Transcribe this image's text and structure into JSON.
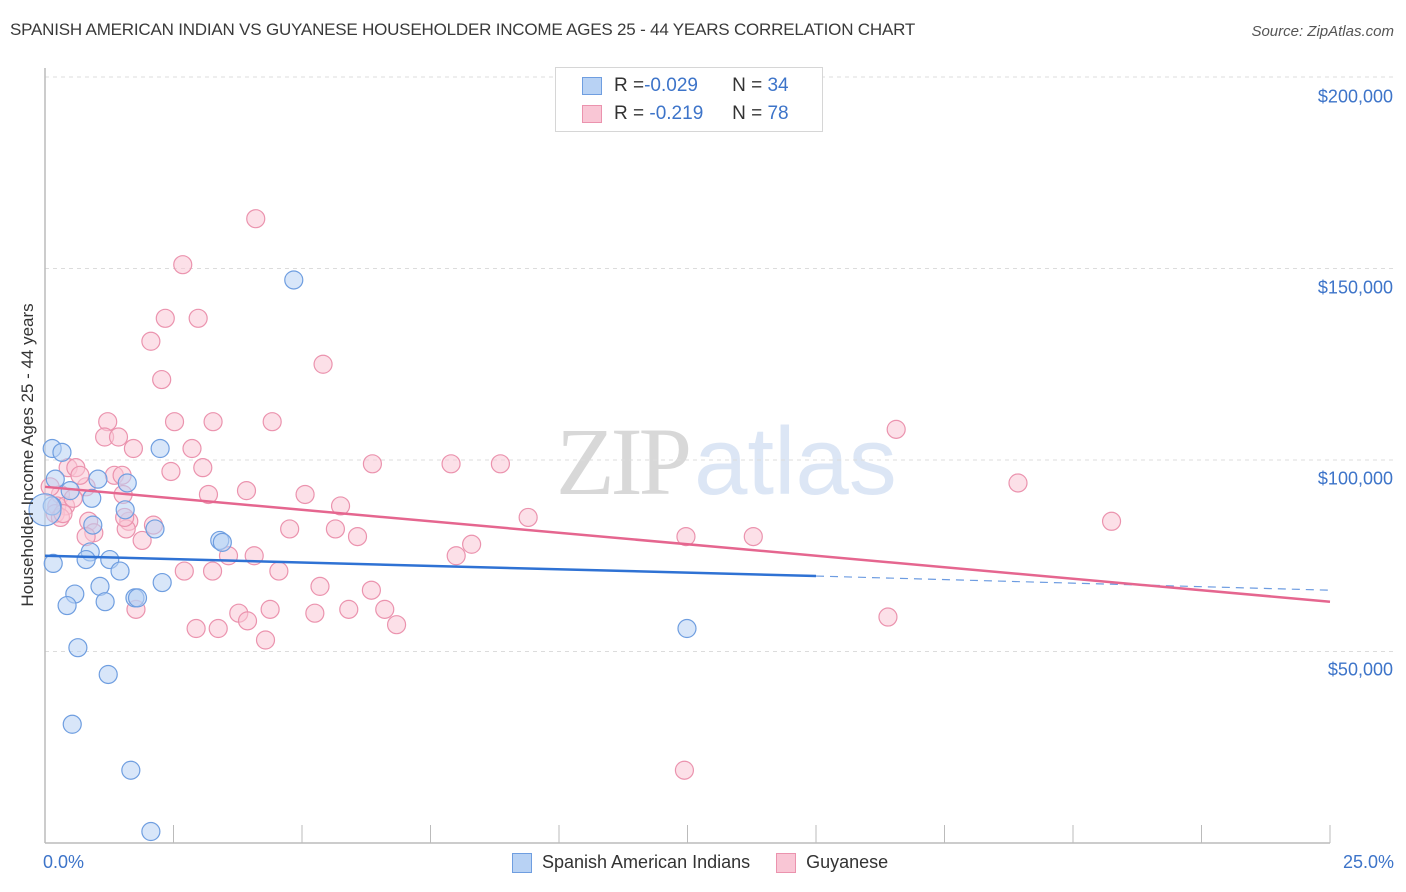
{
  "header": {
    "title": "SPANISH AMERICAN INDIAN VS GUYANESE HOUSEHOLDER INCOME AGES 25 - 44 YEARS CORRELATION CHART",
    "source": "Source: ZipAtlas.com"
  },
  "watermark": {
    "zip": "ZIP",
    "atlas": "atlas"
  },
  "axes": {
    "ylabel": "Householder Income Ages 25 - 44 years",
    "y_ticks": [
      "$200,000",
      "$150,000",
      "$100,000",
      "$50,000"
    ],
    "x_min_label": "0.0%",
    "x_max_label": "25.0%"
  },
  "legend": {
    "rows": [
      {
        "r_label": "R = ",
        "r_value": "-0.029",
        "n_label": "N = ",
        "n_value": "34"
      },
      {
        "r_label": "R = ",
        "r_value": " -0.219",
        "n_label": "N = ",
        "n_value": "78"
      }
    ],
    "bottom": [
      "Spanish American Indians",
      "Guyanese"
    ]
  },
  "colors": {
    "blue_fill": "#b8d2f4",
    "blue_stroke": "#6f9ee0",
    "blue_line": "#2f72d4",
    "pink_fill": "#f9c6d5",
    "pink_stroke": "#eb93ae",
    "pink_line": "#e5668f",
    "accent_text": "#3d74c9"
  },
  "chart_data": {
    "type": "scatter",
    "title": "SPANISH AMERICAN INDIAN VS GUYANESE HOUSEHOLDER INCOME AGES 25 - 44 YEARS CORRELATION CHART",
    "xlabel": "",
    "ylabel": "Householder Income Ages 25 - 44 years",
    "xlim": [
      0,
      25
    ],
    "ylim": [
      0,
      210000
    ],
    "x_unit": "%",
    "y_ticks": [
      50000,
      100000,
      150000,
      200000
    ],
    "grid": true,
    "legend_position": "top-center and bottom",
    "series": [
      {
        "name": "Spanish American Indians",
        "R": -0.029,
        "N": 34,
        "trend": {
          "x0": 0,
          "y0": 75000,
          "x1": 15,
          "y1": 69700,
          "dashed_to_x": 25,
          "dashed_y1": 66000
        },
        "points": [
          [
            0.14,
            103000
          ],
          [
            0.33,
            102000
          ],
          [
            0.2,
            95000
          ],
          [
            0.14,
            88000
          ],
          [
            0.0,
            87000
          ],
          [
            0.49,
            92000
          ],
          [
            0.91,
            90000
          ],
          [
            1.03,
            95000
          ],
          [
            1.6,
            94000
          ],
          [
            1.56,
            87000
          ],
          [
            2.14,
            82000
          ],
          [
            0.93,
            83000
          ],
          [
            0.88,
            76000
          ],
          [
            0.8,
            74000
          ],
          [
            1.26,
            74000
          ],
          [
            0.16,
            73000
          ],
          [
            1.46,
            71000
          ],
          [
            1.07,
            67000
          ],
          [
            0.58,
            65000
          ],
          [
            1.17,
            63000
          ],
          [
            0.43,
            62000
          ],
          [
            1.75,
            64000
          ],
          [
            2.28,
            68000
          ],
          [
            1.8,
            64000
          ],
          [
            0.64,
            51000
          ],
          [
            1.23,
            44000
          ],
          [
            0.53,
            31000
          ],
          [
            1.67,
            19000
          ],
          [
            2.06,
            3000
          ],
          [
            4.84,
            147000
          ],
          [
            2.24,
            103000
          ],
          [
            3.4,
            79000
          ],
          [
            3.45,
            78500
          ],
          [
            12.49,
            56000
          ]
        ]
      },
      {
        "name": "Guyanese",
        "R": -0.219,
        "N": 78,
        "trend": {
          "x0": 0,
          "y0": 93000,
          "x1": 25,
          "y1": 63000
        },
        "points": [
          [
            4.1,
            163000
          ],
          [
            2.68,
            151000
          ],
          [
            2.34,
            137000
          ],
          [
            2.98,
            137000
          ],
          [
            2.06,
            131000
          ],
          [
            2.27,
            121000
          ],
          [
            5.41,
            125000
          ],
          [
            1.22,
            110000
          ],
          [
            1.16,
            106000
          ],
          [
            1.43,
            106000
          ],
          [
            2.52,
            110000
          ],
          [
            3.27,
            110000
          ],
          [
            4.42,
            110000
          ],
          [
            2.86,
            103000
          ],
          [
            1.72,
            103000
          ],
          [
            0.45,
            98000
          ],
          [
            0.6,
            98000
          ],
          [
            2.45,
            97000
          ],
          [
            3.07,
            98000
          ],
          [
            6.37,
            99000
          ],
          [
            7.9,
            99000
          ],
          [
            8.86,
            99000
          ],
          [
            1.35,
            96000
          ],
          [
            1.5,
            96000
          ],
          [
            0.8,
            93000
          ],
          [
            0.3,
            91000
          ],
          [
            1.52,
            91000
          ],
          [
            3.18,
            91000
          ],
          [
            3.92,
            92000
          ],
          [
            5.06,
            91000
          ],
          [
            0.23,
            88000
          ],
          [
            0.4,
            88000
          ],
          [
            0.2,
            86000
          ],
          [
            0.3,
            85000
          ],
          [
            5.75,
            88000
          ],
          [
            9.4,
            85000
          ],
          [
            0.85,
            84000
          ],
          [
            1.63,
            84000
          ],
          [
            2.11,
            83000
          ],
          [
            0.95,
            81000
          ],
          [
            1.58,
            82000
          ],
          [
            4.76,
            82000
          ],
          [
            5.65,
            82000
          ],
          [
            6.08,
            80000
          ],
          [
            0.8,
            80000
          ],
          [
            1.89,
            79000
          ],
          [
            12.47,
            80000
          ],
          [
            13.78,
            80000
          ],
          [
            8.3,
            78000
          ],
          [
            8.0,
            75000
          ],
          [
            3.57,
            75000
          ],
          [
            4.07,
            75000
          ],
          [
            20.75,
            84000
          ],
          [
            18.93,
            94000
          ],
          [
            16.56,
            108000
          ],
          [
            2.71,
            71000
          ],
          [
            3.26,
            71000
          ],
          [
            4.55,
            71000
          ],
          [
            5.35,
            67000
          ],
          [
            6.35,
            66000
          ],
          [
            1.77,
            61000
          ],
          [
            3.77,
            60000
          ],
          [
            4.38,
            61000
          ],
          [
            5.25,
            60000
          ],
          [
            5.91,
            61000
          ],
          [
            6.61,
            61000
          ],
          [
            3.94,
            58000
          ],
          [
            6.84,
            57000
          ],
          [
            2.94,
            56000
          ],
          [
            3.37,
            56000
          ],
          [
            4.29,
            53000
          ],
          [
            16.4,
            59000
          ],
          [
            12.44,
            19000
          ],
          [
            1.55,
            85000
          ],
          [
            0.55,
            90000
          ],
          [
            0.68,
            96000
          ],
          [
            0.1,
            93000
          ],
          [
            0.35,
            86000
          ]
        ]
      }
    ]
  }
}
